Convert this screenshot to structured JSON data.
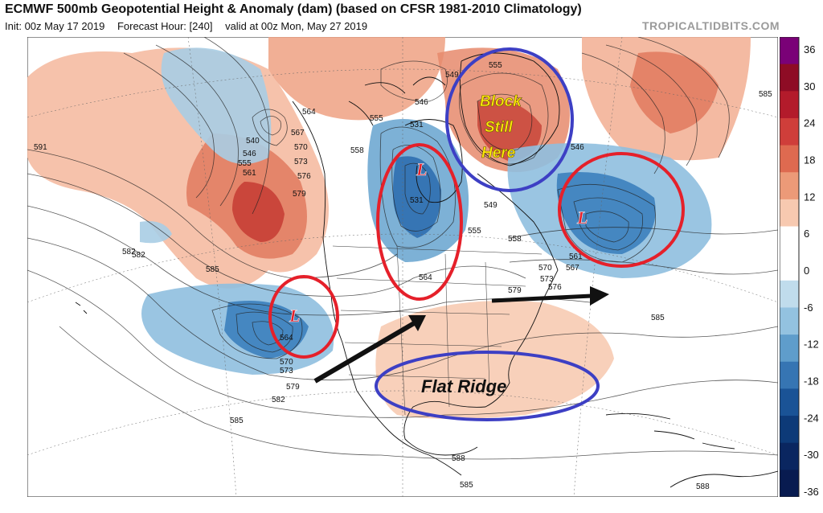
{
  "header": {
    "title": "ECMWF 500mb Geopotential Height & Anomaly (dam) (based on CFSR 1981-2010 Climatology)",
    "init": "Init: 00z May 17 2019",
    "forecast_hour": "Forecast Hour: [240]",
    "valid": "valid at 00z Mon, May 27 2019",
    "brand": "TROPICALTIDBITS.COM"
  },
  "colorbar": {
    "ticks": [
      "36",
      "30",
      "24",
      "18",
      "12",
      "6",
      "0",
      "-6",
      "-12",
      "-18",
      "-24",
      "-30",
      "-36"
    ],
    "colors": [
      "#7a0177",
      "#8e0c25",
      "#b31b2b",
      "#cf3e3a",
      "#de6a50",
      "#ec9a78",
      "#f7c9b0",
      "#ffffff",
      "#ffffff",
      "#c0dcec",
      "#93c2e0",
      "#5f9dcb",
      "#3675b3",
      "#1a5396",
      "#0d3a78",
      "#0a2660",
      "#081b50"
    ]
  },
  "annotations": {
    "block_line1": "Block",
    "block_line2": "Still",
    "block_line3": "Here",
    "flat_ridge": "Flat Ridge",
    "low_marker": "L"
  },
  "contour_labels": [
    "591",
    "540",
    "546",
    "555",
    "561",
    "567",
    "570",
    "573",
    "576",
    "579",
    "564",
    "582",
    "585",
    "549",
    "546",
    "555",
    "558",
    "531",
    "531",
    "549",
    "555",
    "558",
    "555",
    "546",
    "585",
    "561",
    "567",
    "564",
    "570",
    "573",
    "579",
    "576",
    "585",
    "564",
    "570",
    "573",
    "579",
    "582",
    "585",
    "582",
    "588",
    "585",
    "588"
  ]
}
